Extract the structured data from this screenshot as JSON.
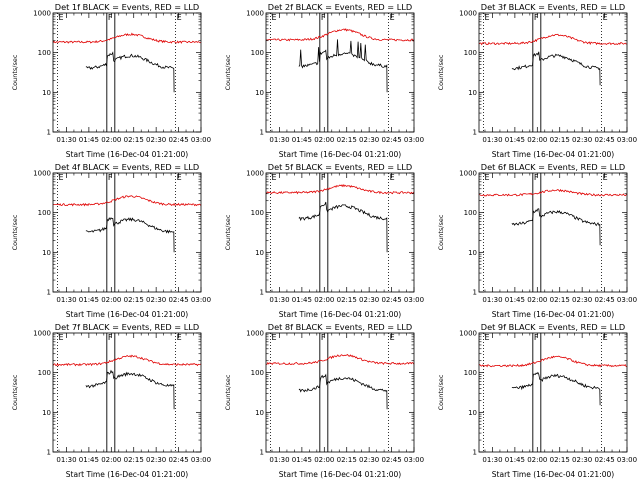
{
  "chart_data": [
    {
      "type": "line",
      "title": "Det 1f BLACK = Events, RED = LLD",
      "xlabel": "Start Time (16-Dec-04 01:21:00)",
      "ylabel": "Counts/sec",
      "y_scale": "log",
      "ylim": [
        1,
        1000
      ],
      "xticks": [
        "01:30",
        "01:45",
        "02:00",
        "02:15",
        "02:30",
        "02:45",
        "03:00"
      ],
      "yticks": [
        "1",
        "10",
        "100",
        "1000"
      ],
      "markers": [
        {
          "label": "E",
          "x": "01:24"
        },
        {
          "label": "F",
          "x": "01:57"
        },
        {
          "label": "E",
          "x": "02:43"
        }
      ],
      "events": {
        "x_start": "01:43",
        "x_end": "02:42",
        "base": 40,
        "dropoff": 10
      },
      "lld": {
        "x_start": "01:21",
        "x_end": "03:00",
        "base": 185,
        "peak": 290,
        "peak_x": "02:13"
      }
    },
    {
      "type": "line",
      "title": "Det 2f BLACK = Events, RED = LLD",
      "xlabel": "Start Time (16-Dec-04 01:21:00)",
      "ylabel": "Counts/sec",
      "y_scale": "log",
      "ylim": [
        1,
        1000
      ],
      "xticks": [
        "01:30",
        "01:45",
        "02:00",
        "02:15",
        "02:30",
        "02:45",
        "03:00"
      ],
      "yticks": [
        "1",
        "10",
        "100",
        "1000"
      ],
      "markers": [
        {
          "label": "E",
          "x": "01:24"
        },
        {
          "label": "F",
          "x": "01:57"
        },
        {
          "label": "E",
          "x": "02:43"
        }
      ],
      "events": {
        "x_start": "01:43",
        "x_end": "02:42",
        "base": 45,
        "dropoff": 10,
        "spiky": true
      },
      "lld": {
        "x_start": "01:21",
        "x_end": "03:00",
        "base": 210,
        "peak": 380,
        "peak_x": "02:13"
      }
    },
    {
      "type": "line",
      "title": "Det 3f BLACK = Events, RED = LLD",
      "xlabel": "Start Time (16-Dec-04 01:21:00)",
      "ylabel": "Counts/sec",
      "y_scale": "log",
      "ylim": [
        1,
        1000
      ],
      "xticks": [
        "01:30",
        "01:45",
        "02:00",
        "02:15",
        "02:30",
        "02:45",
        "03:00"
      ],
      "yticks": [
        "1",
        "10",
        "100",
        "1000"
      ],
      "markers": [
        {
          "label": "E",
          "x": "01:24"
        },
        {
          "label": "F",
          "x": "01:57"
        },
        {
          "label": "E",
          "x": "02:43"
        }
      ],
      "events": {
        "x_start": "01:43",
        "x_end": "02:42",
        "base": 40,
        "dropoff": 15
      },
      "lld": {
        "x_start": "01:21",
        "x_end": "03:00",
        "base": 170,
        "peak": 280,
        "peak_x": "02:13"
      }
    },
    {
      "type": "line",
      "title": "Det 4f BLACK = Events, RED = LLD",
      "xlabel": "Start Time (16-Dec-04 01:21:00)",
      "ylabel": "Counts/sec",
      "y_scale": "log",
      "ylim": [
        1,
        1000
      ],
      "xticks": [
        "01:30",
        "01:45",
        "02:00",
        "02:15",
        "02:30",
        "02:45",
        "03:00"
      ],
      "yticks": [
        "1",
        "10",
        "100",
        "1000"
      ],
      "markers": [
        {
          "label": "E",
          "x": "01:24"
        },
        {
          "label": "F",
          "x": "01:57"
        },
        {
          "label": "E",
          "x": "02:43"
        }
      ],
      "events": {
        "x_start": "01:43",
        "x_end": "02:42",
        "base": 32,
        "dropoff": 10
      },
      "lld": {
        "x_start": "01:21",
        "x_end": "03:00",
        "base": 160,
        "peak": 260,
        "peak_x": "02:13"
      }
    },
    {
      "type": "line",
      "title": "Det 5f BLACK = Events, RED = LLD",
      "xlabel": "Start Time (16-Dec-04 01:21:00)",
      "ylabel": "Counts/sec",
      "y_scale": "log",
      "ylim": [
        1,
        1000
      ],
      "xticks": [
        "01:30",
        "01:45",
        "02:00",
        "02:15",
        "02:30",
        "02:45",
        "03:00"
      ],
      "yticks": [
        "1",
        "10",
        "100",
        "1000"
      ],
      "markers": [
        {
          "label": "E",
          "x": "01:24"
        },
        {
          "label": "F",
          "x": "01:57"
        },
        {
          "label": "E",
          "x": "02:43"
        }
      ],
      "events": {
        "x_start": "01:43",
        "x_end": "02:42",
        "base": 70,
        "dropoff": 10
      },
      "lld": {
        "x_start": "01:21",
        "x_end": "03:00",
        "base": 320,
        "peak": 480,
        "peak_x": "02:13"
      }
    },
    {
      "type": "line",
      "title": "Det 6f BLACK = Events, RED = LLD",
      "xlabel": "Start Time (16-Dec-04 01:21:00)",
      "ylabel": "Counts/sec",
      "y_scale": "log",
      "ylim": [
        1,
        1000
      ],
      "xticks": [
        "01:30",
        "01:45",
        "02:00",
        "02:15",
        "02:30",
        "02:45",
        "03:00"
      ],
      "yticks": [
        "1",
        "10",
        "100",
        "1000"
      ],
      "markers": [
        {
          "label": "E",
          "x": "01:24"
        },
        {
          "label": "F",
          "x": "01:57"
        },
        {
          "label": "E",
          "x": "02:43"
        }
      ],
      "events": {
        "x_start": "01:43",
        "x_end": "02:42",
        "base": 50,
        "dropoff": 15
      },
      "lld": {
        "x_start": "01:21",
        "x_end": "03:00",
        "base": 280,
        "peak": 370,
        "peak_x": "02:13"
      }
    },
    {
      "type": "line",
      "title": "Det 7f BLACK = Events, RED = LLD",
      "xlabel": "Start Time (16-Dec-04 01:21:00)",
      "ylabel": "Counts/sec",
      "y_scale": "log",
      "ylim": [
        1,
        1000
      ],
      "xticks": [
        "01:30",
        "01:45",
        "02:00",
        "02:15",
        "02:30",
        "02:45",
        "03:00"
      ],
      "yticks": [
        "1",
        "10",
        "100",
        "1000"
      ],
      "markers": [
        {
          "label": "E",
          "x": "01:24"
        },
        {
          "label": "F",
          "x": "01:57"
        },
        {
          "label": "E",
          "x": "02:43"
        }
      ],
      "events": {
        "x_start": "01:43",
        "x_end": "02:42",
        "base": 45,
        "dropoff": 12
      },
      "lld": {
        "x_start": "01:21",
        "x_end": "03:00",
        "base": 160,
        "peak": 260,
        "peak_x": "02:13"
      }
    },
    {
      "type": "line",
      "title": "Det 8f BLACK = Events, RED = LLD",
      "xlabel": "Start Time (16-Dec-04 01:21:00)",
      "ylabel": "Counts/sec",
      "y_scale": "log",
      "ylim": [
        1,
        1000
      ],
      "xticks": [
        "01:30",
        "01:45",
        "02:00",
        "02:15",
        "02:30",
        "02:45",
        "03:00"
      ],
      "yticks": [
        "1",
        "10",
        "100",
        "1000"
      ],
      "markers": [
        {
          "label": "E",
          "x": "01:24"
        },
        {
          "label": "F",
          "x": "01:57"
        },
        {
          "label": "E",
          "x": "02:43"
        }
      ],
      "events": {
        "x_start": "01:43",
        "x_end": "02:42",
        "base": 35,
        "dropoff": 12
      },
      "lld": {
        "x_start": "01:21",
        "x_end": "03:00",
        "base": 170,
        "peak": 280,
        "peak_x": "02:13"
      }
    },
    {
      "type": "line",
      "title": "Det 9f BLACK = Events, RED = LLD",
      "xlabel": "Start Time (16-Dec-04 01:21:00)",
      "ylabel": "Counts/sec",
      "y_scale": "log",
      "ylim": [
        1,
        1000
      ],
      "xticks": [
        "01:30",
        "01:45",
        "02:00",
        "02:15",
        "02:30",
        "02:45",
        "03:00"
      ],
      "yticks": [
        "1",
        "10",
        "100",
        "1000"
      ],
      "markers": [
        {
          "label": "E",
          "x": "01:24"
        },
        {
          "label": "F",
          "x": "01:57"
        },
        {
          "label": "E",
          "x": "02:43"
        }
      ],
      "events": {
        "x_start": "01:43",
        "x_end": "02:42",
        "base": 40,
        "dropoff": 15
      },
      "lld": {
        "x_start": "01:21",
        "x_end": "03:00",
        "base": 150,
        "peak": 250,
        "peak_x": "02:13"
      }
    }
  ],
  "colors": {
    "events": "#000000",
    "lld": "#e00000",
    "axis": "#000000"
  }
}
